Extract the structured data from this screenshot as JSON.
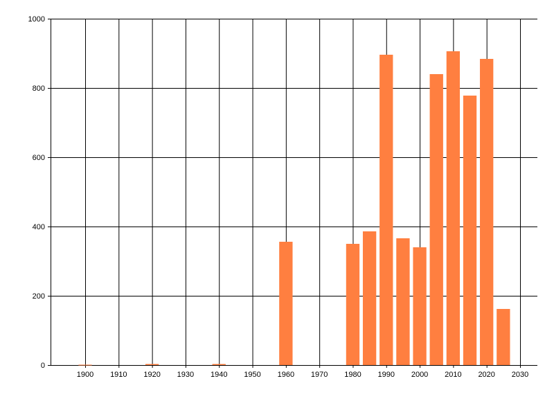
{
  "chart_data": {
    "type": "bar",
    "title": "",
    "xlabel": "",
    "ylabel": "",
    "x": [
      1900,
      1920,
      1940,
      1960,
      1980,
      1985,
      1990,
      1995,
      2000,
      2005,
      2010,
      2015,
      2020,
      2025
    ],
    "values": [
      1,
      3,
      3,
      356,
      350,
      386,
      896,
      366,
      340,
      840,
      906,
      778,
      884,
      162
    ],
    "ylim": [
      0,
      1000
    ],
    "xlim": [
      1890,
      2035
    ],
    "yticks": [
      0,
      200,
      400,
      600,
      800,
      1000
    ],
    "xticks": [
      1900,
      1910,
      1920,
      1930,
      1940,
      1950,
      1960,
      1970,
      1980,
      1990,
      2000,
      2010,
      2020,
      2030
    ],
    "grid": true,
    "legend": "none",
    "bar_color": "#FF7F40"
  }
}
